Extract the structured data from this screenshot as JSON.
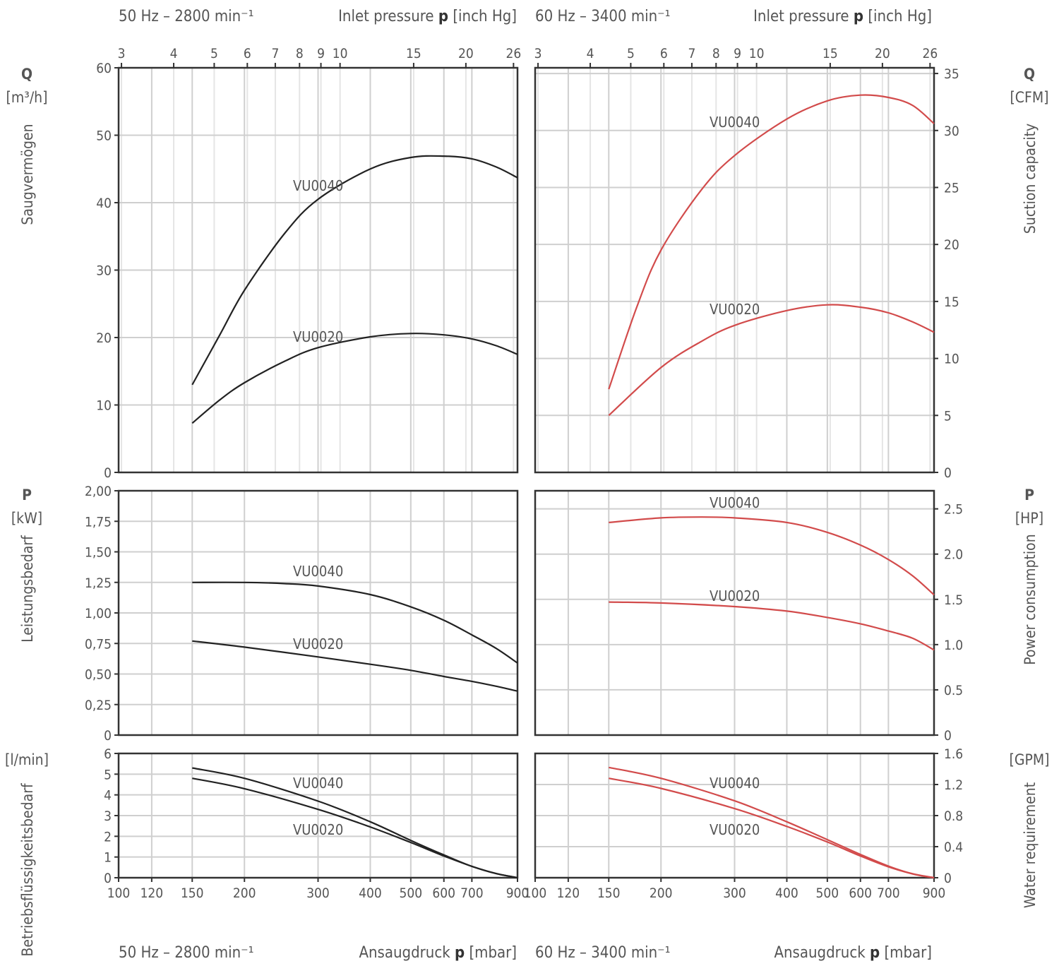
{
  "headers": {
    "top_left_freq": "50 Hz – 2800 min⁻¹",
    "top_right_freq": "60 Hz – 3400 min⁻¹",
    "top_axis_label_text": "Inlet pressure ",
    "top_axis_label_bold": "p",
    "top_axis_label_unit": " [inch Hg]",
    "bottom_left_freq": "50 Hz – 2800 min⁻¹",
    "bottom_right_freq": "60 Hz – 3400 min⁻¹",
    "bottom_axis_label_text": "Ansaugdruck ",
    "bottom_axis_label_bold": "p",
    "bottom_axis_label_unit": " [mbar]"
  },
  "left_axes": {
    "q_symbol": "Q",
    "q_unit": "[m³/h]",
    "q_name": "Saugvermögen",
    "p_symbol": "P",
    "p_unit": "[kW]",
    "p_name": "Leistungsbedarf",
    "w_unit": "[l/min]",
    "w_name": "Betriebsflüssigkeitsbedarf"
  },
  "right_axes": {
    "q_symbol": "Q",
    "q_unit": "[CFM]",
    "q_name": "Suction capacity",
    "p_symbol": "P",
    "p_unit": "[HP]",
    "p_name": "Power consumption",
    "w_unit": "[GPM]",
    "w_name": "Water requirement"
  },
  "colors": {
    "hz50": "#222222",
    "hz60": "#d24b4b"
  },
  "chart_data": {
    "type": "line",
    "x_scale": "log",
    "x_unit": "mbar",
    "x_range": [
      100,
      900
    ],
    "x_ticks": [
      100,
      120,
      150,
      200,
      300,
      400,
      500,
      600,
      700,
      900
    ],
    "x_tick_labels": [
      "100",
      "120",
      "150",
      "200",
      "300",
      "400",
      "500",
      "600",
      "700",
      "900"
    ],
    "x_top_unit": "inch Hg",
    "x_top_ticks": [
      3,
      4,
      5,
      6,
      7,
      8,
      9,
      10,
      15,
      20,
      26
    ],
    "x_top_tick_labels": [
      "3",
      "4",
      "5",
      "6",
      "7",
      "8",
      "9",
      "10",
      "15",
      "20",
      "26"
    ],
    "panels": [
      {
        "id": "q50",
        "quantity": "Q",
        "unit": "m³/h",
        "frequency": "50 Hz",
        "ylim": [
          0,
          60
        ],
        "y_ticks": [
          0,
          10,
          20,
          30,
          40,
          50,
          60
        ],
        "y_tick_labels": [
          "0",
          "10",
          "20",
          "30",
          "40",
          "50",
          "60"
        ],
        "series": [
          {
            "name": "VU0040",
            "x": [
              150,
              175,
              200,
              250,
              300,
              400,
              500,
              600,
              700,
              800,
              900
            ],
            "y": [
              13.0,
              20.5,
              27.0,
              35.5,
              40.5,
              45.0,
              46.7,
              46.9,
              46.5,
              45.3,
              43.7
            ]
          },
          {
            "name": "VU0020",
            "x": [
              150,
              175,
              200,
              250,
              300,
              400,
              500,
              600,
              700,
              800,
              900
            ],
            "y": [
              7.3,
              10.8,
              13.3,
              16.5,
              18.5,
              20.1,
              20.6,
              20.4,
              19.8,
              18.8,
              17.5
            ]
          }
        ]
      },
      {
        "id": "p50",
        "quantity": "P",
        "unit": "kW",
        "frequency": "50 Hz",
        "ylim": [
          0,
          2
        ],
        "y_ticks": [
          0,
          0.25,
          0.5,
          0.75,
          1.0,
          1.25,
          1.5,
          1.75,
          2.0
        ],
        "y_tick_labels": [
          "0",
          "0,25",
          "0,50",
          "0,75",
          "1,00",
          "1,25",
          "1,50",
          "1,75",
          "2,00"
        ],
        "series": [
          {
            "name": "VU0040",
            "x": [
              150,
              200,
              250,
              300,
              400,
              500,
              600,
              700,
              800,
              900
            ],
            "y": [
              1.25,
              1.25,
              1.24,
              1.22,
              1.15,
              1.05,
              0.94,
              0.82,
              0.71,
              0.59
            ]
          },
          {
            "name": "VU0020",
            "x": [
              150,
              200,
              300,
              400,
              500,
              600,
              700,
              800,
              900
            ],
            "y": [
              0.77,
              0.72,
              0.64,
              0.58,
              0.53,
              0.48,
              0.44,
              0.4,
              0.36
            ]
          }
        ]
      },
      {
        "id": "w50",
        "quantity": "W",
        "unit": "l/min",
        "frequency": "50 Hz",
        "ylim": [
          0,
          6
        ],
        "y_ticks": [
          0,
          1,
          2,
          3,
          4,
          5,
          6
        ],
        "y_tick_labels": [
          "0",
          "1",
          "2",
          "3",
          "4",
          "5",
          "6"
        ],
        "series": [
          {
            "name": "VU0040",
            "x": [
              150,
              200,
              300,
              400,
              500,
              600,
              700,
              800,
              900
            ],
            "y": [
              5.3,
              4.8,
              3.7,
              2.7,
              1.8,
              1.1,
              0.55,
              0.2,
              0.0
            ]
          },
          {
            "name": "VU0020",
            "x": [
              150,
              200,
              300,
              400,
              500,
              600,
              700,
              800,
              900
            ],
            "y": [
              4.8,
              4.3,
              3.3,
              2.45,
              1.7,
              1.05,
              0.55,
              0.2,
              0.0
            ]
          }
        ]
      },
      {
        "id": "q60",
        "quantity": "Q",
        "unit": "CFM",
        "frequency": "60 Hz",
        "ylim": [
          0,
          35.5
        ],
        "y_ticks": [
          0,
          5,
          10,
          15,
          20,
          25,
          30,
          35
        ],
        "y_tick_labels": [
          "0",
          "5",
          "10",
          "15",
          "20",
          "25",
          "30",
          "35"
        ],
        "series": [
          {
            "name": "VU0040",
            "x": [
              150,
              175,
              200,
              250,
              300,
              400,
              500,
              600,
              700,
              800,
              900
            ],
            "y": [
              7.3,
              14.5,
              19.5,
              24.8,
              27.8,
              31.0,
              32.6,
              33.1,
              32.9,
              32.2,
              30.6
            ]
          },
          {
            "name": "VU0020",
            "x": [
              150,
              200,
              250,
              300,
              400,
              500,
              600,
              700,
              800,
              900
            ],
            "y": [
              5.0,
              9.2,
              11.5,
              12.9,
              14.2,
              14.7,
              14.5,
              14.0,
              13.2,
              12.3
            ]
          }
        ]
      },
      {
        "id": "p60",
        "quantity": "P",
        "unit": "HP",
        "frequency": "60 Hz",
        "ylim": [
          0,
          2.7
        ],
        "y_ticks": [
          0,
          0.5,
          1.0,
          1.5,
          2.0,
          2.5
        ],
        "y_tick_labels": [
          "0",
          "0.5",
          "1.0",
          "1.5",
          "2.0",
          "2.5"
        ],
        "series": [
          {
            "name": "VU0040",
            "x": [
              150,
              200,
              250,
              300,
              400,
              500,
              600,
              700,
              800,
              900
            ],
            "y": [
              2.35,
              2.4,
              2.41,
              2.4,
              2.35,
              2.24,
              2.1,
              1.94,
              1.76,
              1.55
            ]
          },
          {
            "name": "VU0020",
            "x": [
              150,
              200,
              300,
              400,
              500,
              600,
              700,
              800,
              900
            ],
            "y": [
              1.47,
              1.46,
              1.42,
              1.37,
              1.3,
              1.23,
              1.15,
              1.07,
              0.94
            ]
          }
        ]
      },
      {
        "id": "w60",
        "quantity": "W",
        "unit": "GPM",
        "frequency": "60 Hz",
        "ylim": [
          0,
          1.6
        ],
        "y_ticks": [
          0,
          0.4,
          0.8,
          1.2,
          1.6
        ],
        "y_tick_labels": [
          "0",
          "0.4",
          "0.8",
          "1.2",
          "1.6"
        ],
        "series": [
          {
            "name": "VU0040",
            "x": [
              150,
              200,
              300,
              400,
              500,
              600,
              700,
              800,
              900
            ],
            "y": [
              1.42,
              1.28,
              0.99,
              0.72,
              0.49,
              0.3,
              0.15,
              0.05,
              0.0
            ]
          },
          {
            "name": "VU0020",
            "x": [
              150,
              200,
              300,
              400,
              500,
              600,
              700,
              800,
              900
            ],
            "y": [
              1.28,
              1.15,
              0.89,
              0.66,
              0.46,
              0.28,
              0.14,
              0.05,
              0.0
            ]
          }
        ]
      }
    ]
  }
}
